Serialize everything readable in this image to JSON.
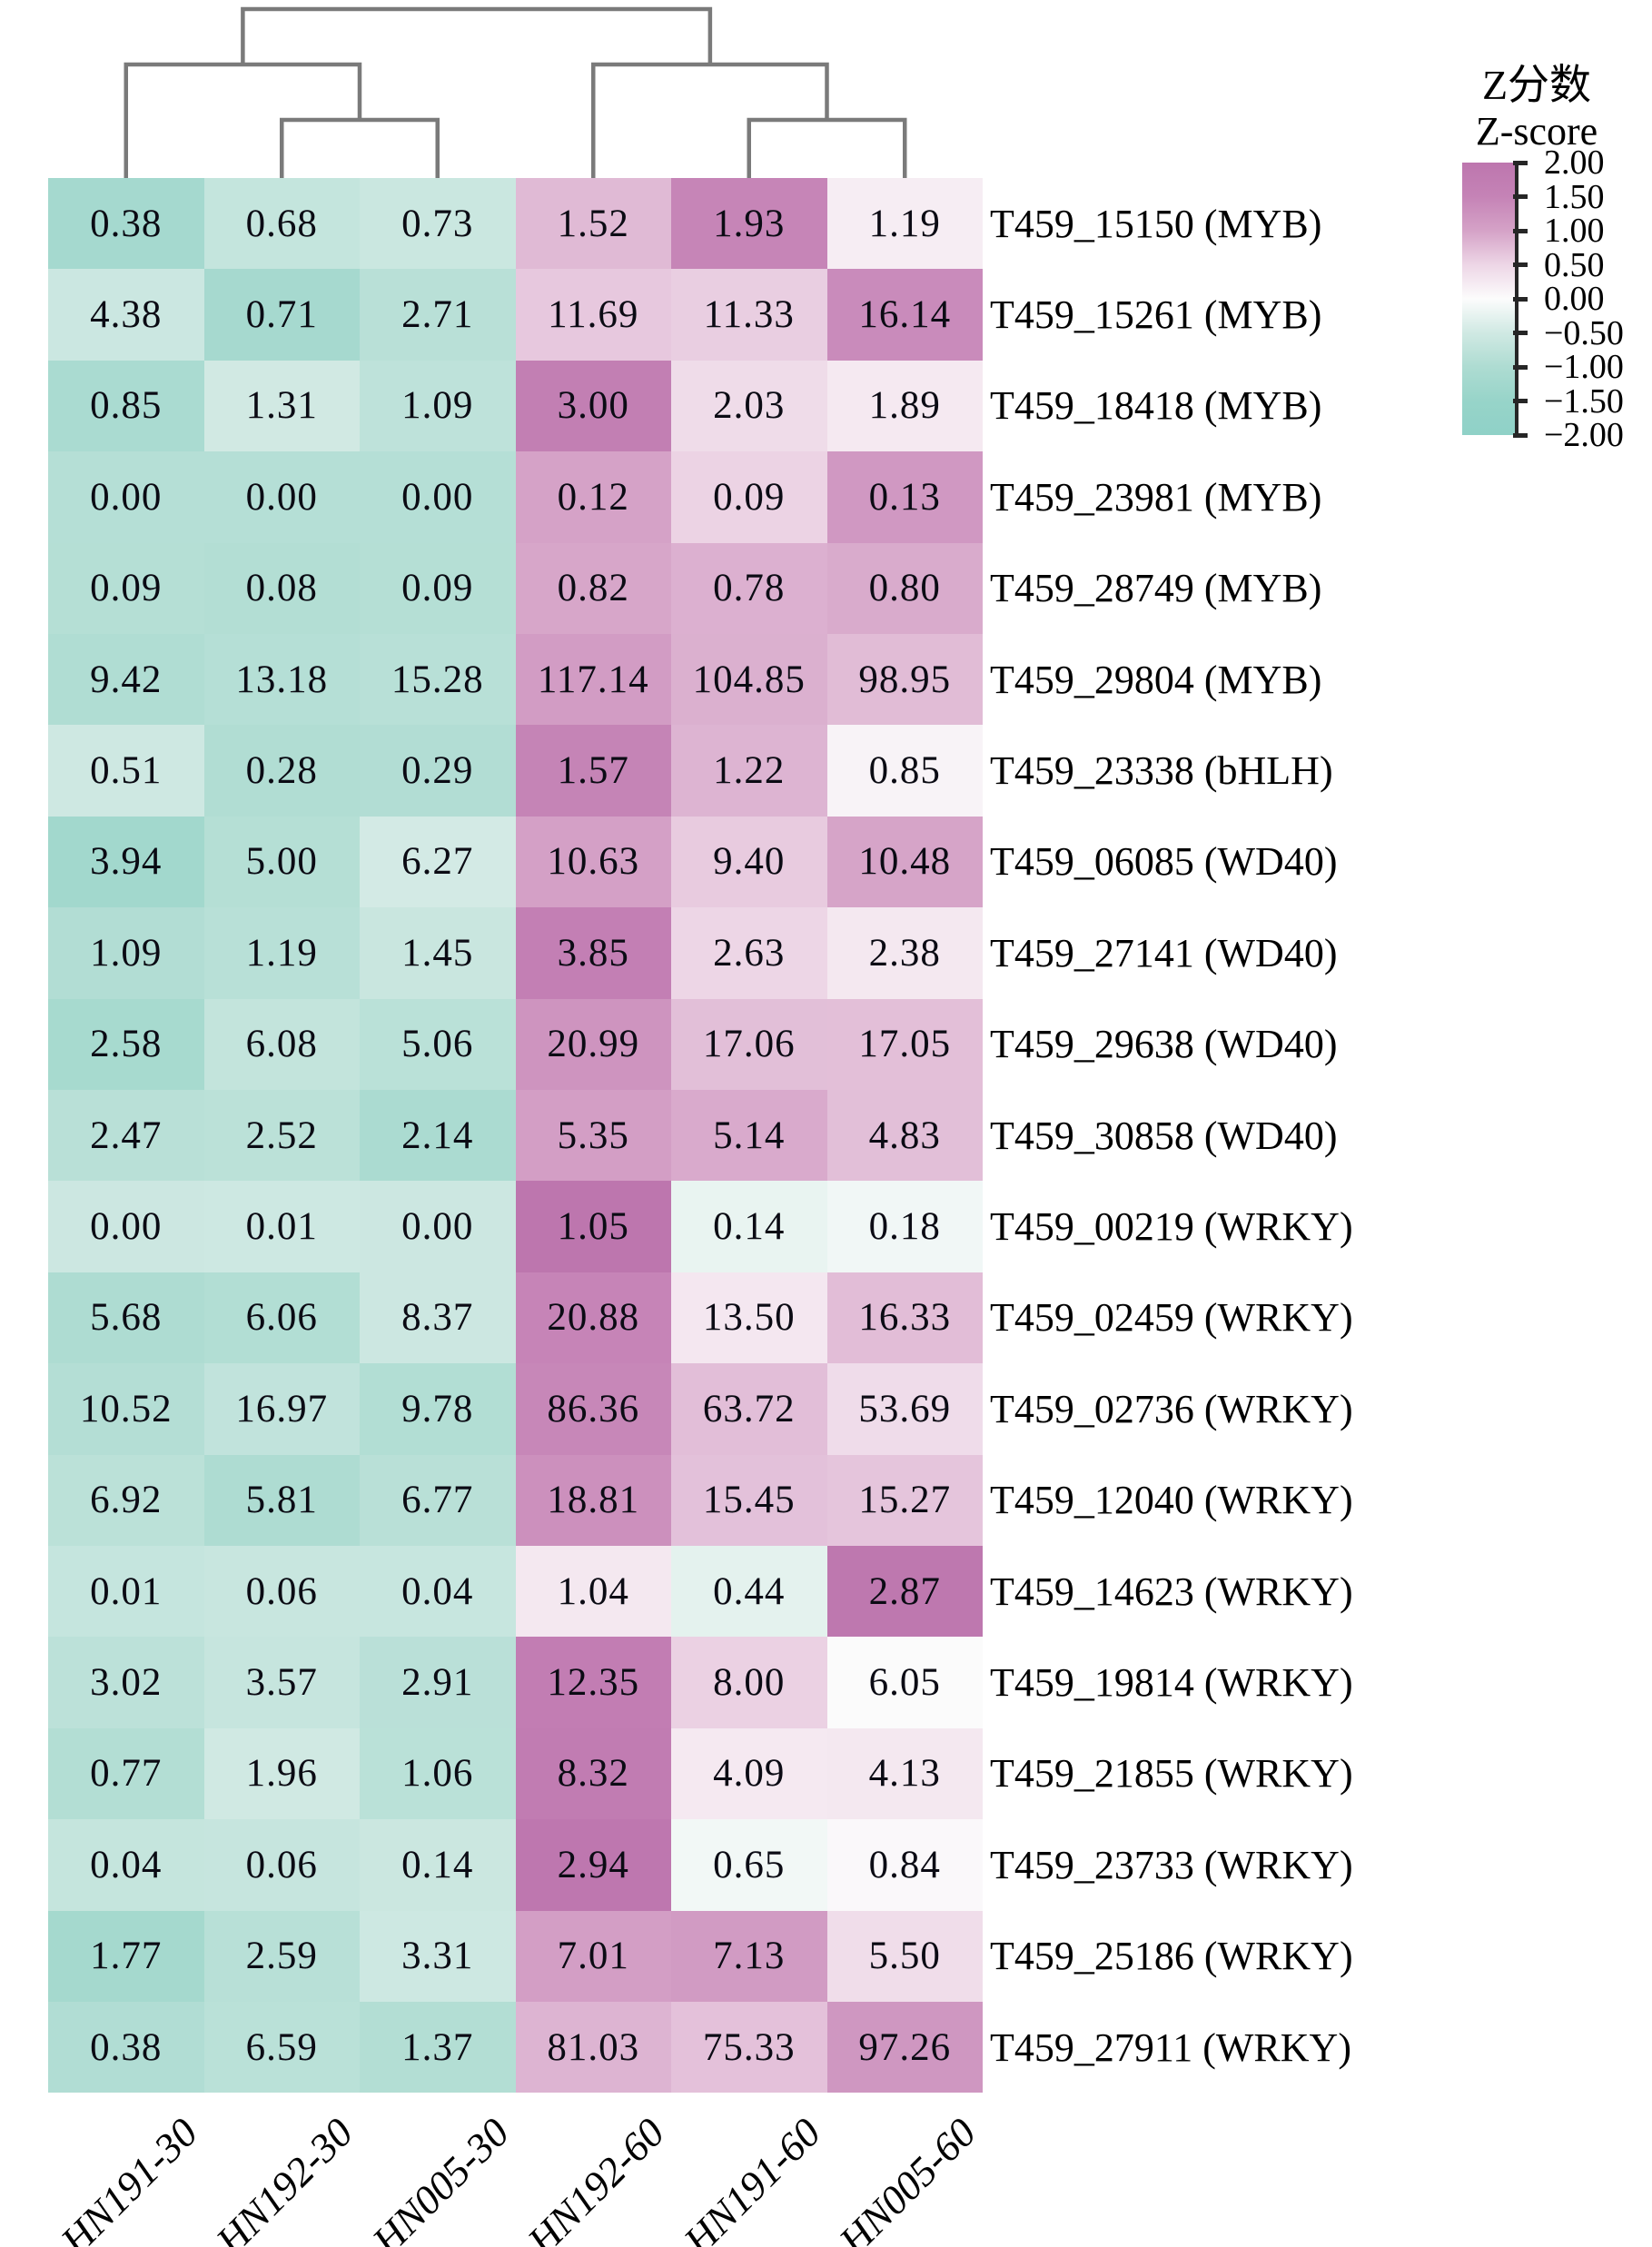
{
  "chart_data": {
    "type": "heatmap",
    "title": "",
    "normalization": "row z-score",
    "legend_position": "right",
    "columns": [
      "HN191-30",
      "HN192-30",
      "HN005-30",
      "HN192-60",
      "HN191-60",
      "HN005-60"
    ],
    "rows": [
      "T459_15150 (MYB)",
      "T459_15261 (MYB)",
      "T459_18418 (MYB)",
      "T459_23981 (MYB)",
      "T459_28749 (MYB)",
      "T459_29804 (MYB)",
      "T459_23338 (bHLH)",
      "T459_06085 (WD40)",
      "T459_27141 (WD40)",
      "T459_29638 (WD40)",
      "T459_30858 (WD40)",
      "T459_00219 (WRKY)",
      "T459_02459 (WRKY)",
      "T459_02736 (WRKY)",
      "T459_12040 (WRKY)",
      "T459_14623 (WRKY)",
      "T459_19814 (WRKY)",
      "T459_21855 (WRKY)",
      "T459_23733 (WRKY)",
      "T459_25186 (WRKY)",
      "T459_27911 (WRKY)"
    ],
    "values": [
      [
        0.38,
        0.68,
        0.73,
        1.52,
        1.93,
        1.19
      ],
      [
        4.38,
        0.71,
        2.71,
        11.69,
        11.33,
        16.14
      ],
      [
        0.85,
        1.31,
        1.09,
        3.0,
        2.03,
        1.89
      ],
      [
        0.0,
        0.0,
        0.0,
        0.12,
        0.09,
        0.13
      ],
      [
        0.09,
        0.08,
        0.09,
        0.82,
        0.78,
        0.8
      ],
      [
        9.42,
        13.18,
        15.28,
        117.14,
        104.85,
        98.95
      ],
      [
        0.51,
        0.28,
        0.29,
        1.57,
        1.22,
        0.85
      ],
      [
        3.94,
        5.0,
        6.27,
        10.63,
        9.4,
        10.48
      ],
      [
        1.09,
        1.19,
        1.45,
        3.85,
        2.63,
        2.38
      ],
      [
        2.58,
        6.08,
        5.06,
        20.99,
        17.06,
        17.05
      ],
      [
        2.47,
        2.52,
        2.14,
        5.35,
        5.14,
        4.83
      ],
      [
        0.0,
        0.01,
        0.0,
        1.05,
        0.14,
        0.18
      ],
      [
        5.68,
        6.06,
        8.37,
        20.88,
        13.5,
        16.33
      ],
      [
        10.52,
        16.97,
        9.78,
        86.36,
        63.72,
        53.69
      ],
      [
        6.92,
        5.81,
        6.77,
        18.81,
        15.45,
        15.27
      ],
      [
        0.01,
        0.06,
        0.04,
        1.04,
        0.44,
        2.87
      ],
      [
        3.02,
        3.57,
        2.91,
        12.35,
        8.0,
        6.05
      ],
      [
        0.77,
        1.96,
        1.06,
        8.32,
        4.09,
        4.13
      ],
      [
        0.04,
        0.06,
        0.14,
        2.94,
        0.65,
        0.84
      ],
      [
        1.77,
        2.59,
        3.31,
        7.01,
        7.13,
        5.5
      ],
      [
        0.38,
        6.59,
        1.37,
        81.03,
        75.33,
        97.26
      ]
    ],
    "cell_label_decimals": 2,
    "colorbar": {
      "title_zh": "Z分数",
      "title_en": "Z-score",
      "range": [
        -2.0,
        2.0
      ],
      "tick_labels": [
        "2.00",
        "1.50",
        "1.00",
        "0.50",
        "0.00",
        "−0.50",
        "−1.00",
        "−1.50",
        "−2.00"
      ],
      "stops": [
        {
          "z": 2.0,
          "color": "#bd76ae"
        },
        {
          "z": 1.5,
          "color": "#c583b6"
        },
        {
          "z": 1.0,
          "color": "#d5a2c7"
        },
        {
          "z": 0.5,
          "color": "#edd6e6"
        },
        {
          "z": 0.0,
          "color": "#fcfcfc"
        },
        {
          "z": -0.5,
          "color": "#d0e9e3"
        },
        {
          "z": -1.0,
          "color": "#aedcd2"
        },
        {
          "z": -1.5,
          "color": "#97d4c9"
        },
        {
          "z": -2.0,
          "color": "#8fd1c7"
        }
      ]
    },
    "column_dendrogram": {
      "structure": "((HN191-30,(HN192-30,HN005-30)),(HN192-60,(HN191-60,HN005-60)))",
      "line_color": "#7a7a7a"
    }
  }
}
